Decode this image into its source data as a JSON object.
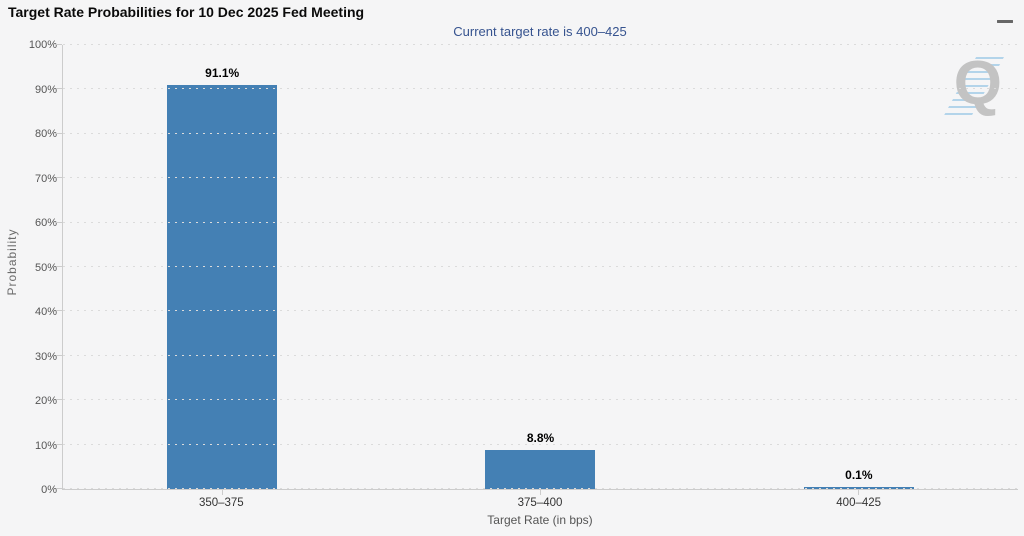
{
  "header": {
    "title": "Target Rate Probabilities for 10 Dec 2025 Fed Meeting",
    "menu_icon": "hamburger-icon"
  },
  "chart_data": {
    "type": "bar",
    "title": "Target Rate Probabilities for 10 Dec 2025 Fed Meeting",
    "subtitle": "Current target rate is 400–425",
    "categories": [
      "350–375",
      "375–400",
      "400–425"
    ],
    "values": [
      91.1,
      8.8,
      0.1
    ],
    "value_labels": [
      "91.1%",
      "8.8%",
      "0.1%"
    ],
    "xlabel": "Target Rate (in bps)",
    "ylabel": "Probability",
    "ylim": [
      0,
      100
    ],
    "ytick_step": 10,
    "ytick_labels": [
      "0%",
      "10%",
      "20%",
      "30%",
      "40%",
      "50%",
      "60%",
      "70%",
      "80%",
      "90%",
      "100%"
    ],
    "grid": "dotted-horizontal",
    "legend": "none",
    "colors": {
      "bar": "#4480b4",
      "subtitle_text": "#36538f",
      "axis_line": "#cccccc",
      "background": "#f5f5f6"
    }
  },
  "watermark": {
    "letter": "Q"
  }
}
